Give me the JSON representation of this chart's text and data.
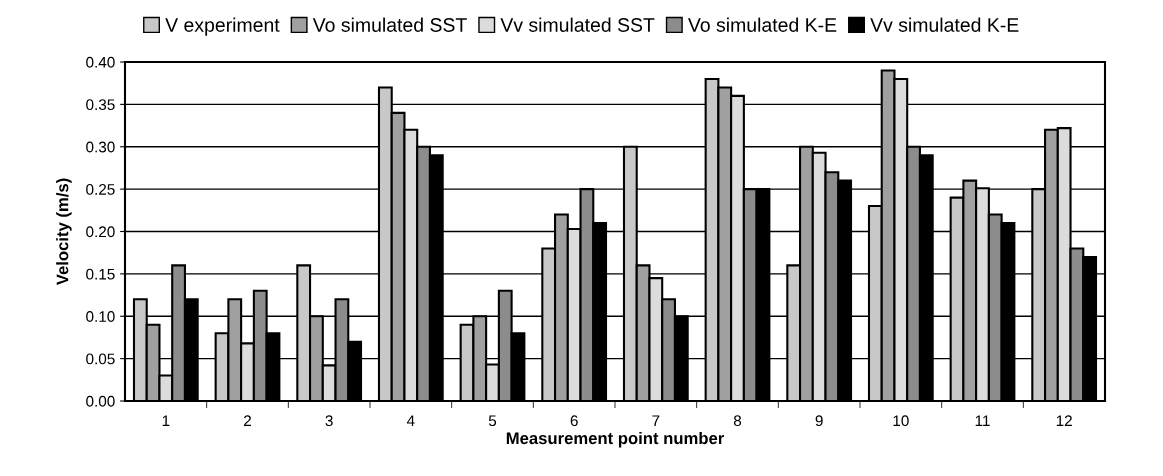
{
  "chart_data": {
    "type": "bar",
    "xlabel": "Measurement point number",
    "ylabel": "Velocity (m/s)",
    "categories": [
      "1",
      "2",
      "3",
      "4",
      "5",
      "6",
      "7",
      "8",
      "9",
      "10",
      "11",
      "12"
    ],
    "series": [
      {
        "name": "V experiment",
        "color": "#c8c8c8",
        "values": [
          0.12,
          0.08,
          0.16,
          0.37,
          0.09,
          0.18,
          0.3,
          0.38,
          0.16,
          0.23,
          0.24,
          0.25
        ]
      },
      {
        "name": "Vo simulated SST",
        "color": "#a0a0a0",
        "values": [
          0.09,
          0.12,
          0.1,
          0.34,
          0.1,
          0.22,
          0.16,
          0.37,
          0.3,
          0.39,
          0.26,
          0.32
        ]
      },
      {
        "name": "Vv simulated SST",
        "color": "#dcdcdc",
        "values": [
          0.03,
          0.068,
          0.042,
          0.32,
          0.043,
          0.203,
          0.145,
          0.36,
          0.293,
          0.38,
          0.251,
          0.322
        ]
      },
      {
        "name": "Vo simulated K-E",
        "color": "#8c8c8c",
        "values": [
          0.16,
          0.13,
          0.12,
          0.3,
          0.13,
          0.25,
          0.12,
          0.25,
          0.27,
          0.3,
          0.22,
          0.18
        ]
      },
      {
        "name": "Vv simulated K-E",
        "color": "#000000",
        "values": [
          0.12,
          0.08,
          0.07,
          0.29,
          0.08,
          0.21,
          0.1,
          0.25,
          0.26,
          0.29,
          0.21,
          0.17
        ]
      }
    ],
    "ylim": [
      0,
      0.4
    ],
    "yticks": [
      {
        "value": 0,
        "label": "0.00"
      },
      {
        "value": 0.05,
        "label": "0.05"
      },
      {
        "value": 0.1,
        "label": "0.10"
      },
      {
        "value": 0.15,
        "label": "0.15"
      },
      {
        "value": 0.2,
        "label": "0.20"
      },
      {
        "value": 0.25,
        "label": "0.25"
      },
      {
        "value": 0.3,
        "label": "0.30"
      },
      {
        "value": 0.35,
        "label": "0.35"
      },
      {
        "value": 0.4,
        "label": "0.40"
      }
    ],
    "grid": "y",
    "legend": "top"
  }
}
